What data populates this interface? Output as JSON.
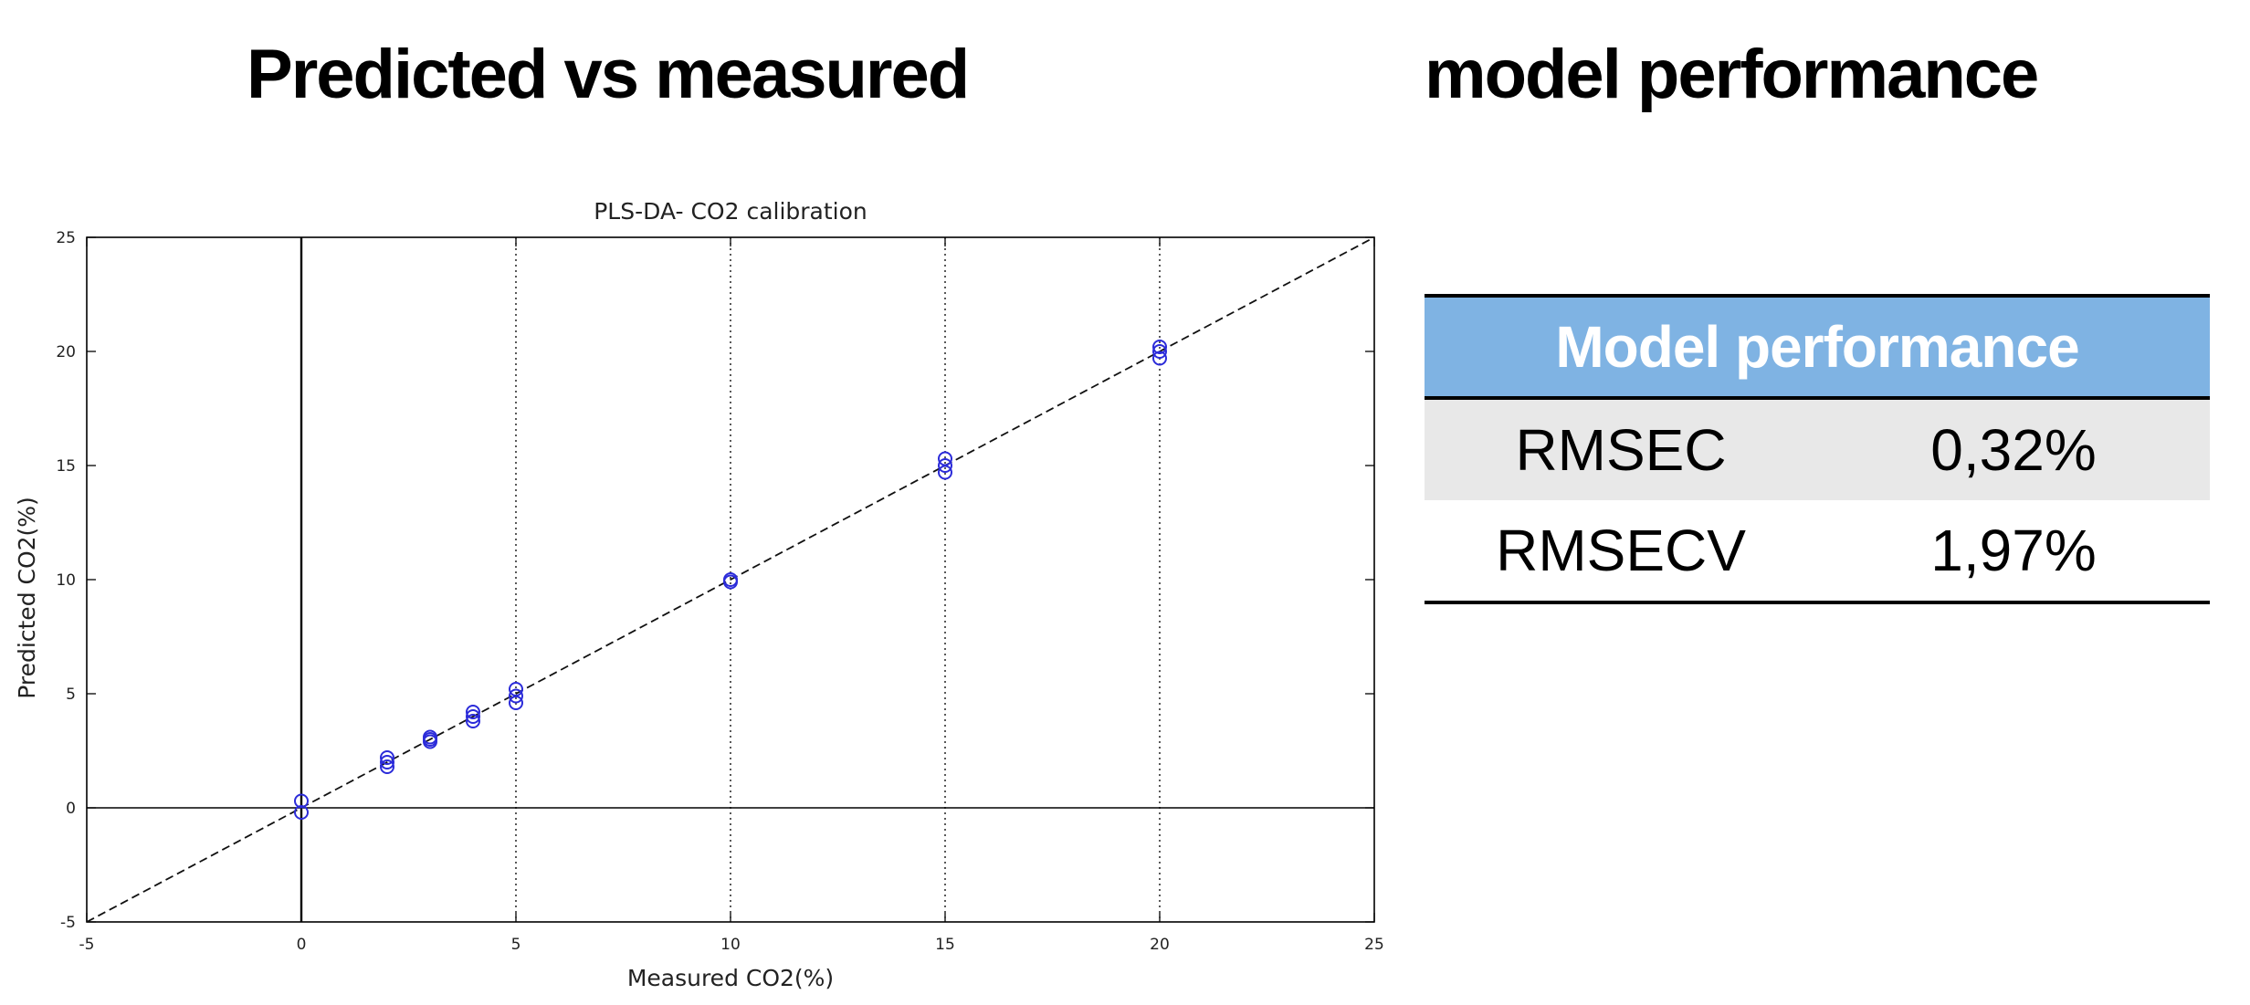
{
  "headings": {
    "left": "Predicted vs measured",
    "right": "model performance"
  },
  "chart_data": {
    "type": "scatter",
    "title": "PLS-DA- CO2 calibration",
    "xlabel": "Measured CO2(%)",
    "ylabel": "Predicted CO2(%)",
    "xlim": [
      -5,
      25
    ],
    "ylim": [
      -5,
      25
    ],
    "xticks": [
      -5,
      0,
      5,
      10,
      15,
      20,
      25
    ],
    "yticks": [
      -5,
      0,
      5,
      10,
      15,
      20,
      25
    ],
    "vertical_dotted_gridlines_x": [
      5,
      10,
      15,
      20
    ],
    "zero_axes": true,
    "reference_line": {
      "style": "dashed",
      "from": [
        -5,
        -5
      ],
      "to": [
        25,
        25
      ]
    },
    "marker": "circle",
    "marker_color": "#2b2bd9",
    "points": [
      {
        "x": 0,
        "y": 0.3
      },
      {
        "x": 0,
        "y": -0.2
      },
      {
        "x": 2,
        "y": 2.2
      },
      {
        "x": 2,
        "y": 1.8
      },
      {
        "x": 2,
        "y": 2.0
      },
      {
        "x": 3,
        "y": 3.1
      },
      {
        "x": 3,
        "y": 2.9
      },
      {
        "x": 3,
        "y": 3.0
      },
      {
        "x": 4,
        "y": 4.2
      },
      {
        "x": 4,
        "y": 3.8
      },
      {
        "x": 4,
        "y": 4.0
      },
      {
        "x": 5,
        "y": 5.2
      },
      {
        "x": 5,
        "y": 4.9
      },
      {
        "x": 5,
        "y": 4.6
      },
      {
        "x": 10,
        "y": 10.0
      },
      {
        "x": 10,
        "y": 9.9
      },
      {
        "x": 15,
        "y": 15.3
      },
      {
        "x": 15,
        "y": 15.0
      },
      {
        "x": 15,
        "y": 14.7
      },
      {
        "x": 20,
        "y": 20.2
      },
      {
        "x": 20,
        "y": 20.0
      },
      {
        "x": 20,
        "y": 19.7
      }
    ]
  },
  "table": {
    "header": "Model performance",
    "rows": [
      {
        "metric": "RMSEC",
        "value": "0,32%"
      },
      {
        "metric": "RMSECV",
        "value": "1,97%"
      }
    ]
  }
}
